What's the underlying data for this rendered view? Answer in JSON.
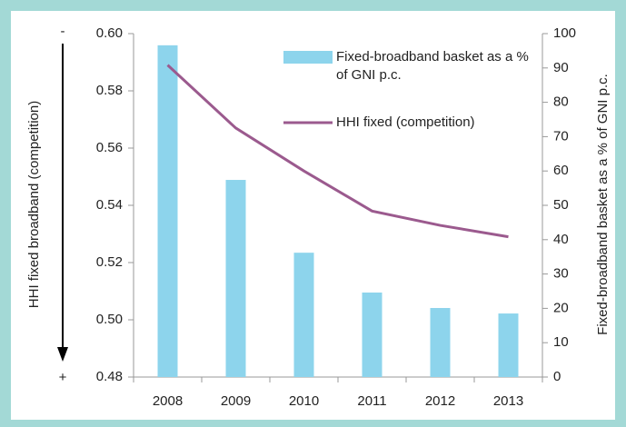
{
  "chart_data": {
    "type": "bar_line",
    "categories": [
      "2008",
      "2009",
      "2010",
      "2011",
      "2012",
      "2013"
    ],
    "series": [
      {
        "name": "Fixed-broadband basket as a % of GNI p.c.",
        "type": "bar",
        "axis": "y2",
        "color": "#8dd4ec",
        "values": [
          96.6,
          57.4,
          36.2,
          24.6,
          20.1,
          18.5
        ]
      },
      {
        "name": "HHI fixed (competition)",
        "type": "line",
        "axis": "y",
        "color": "#9b5a8e",
        "values": [
          0.589,
          0.567,
          0.552,
          0.538,
          0.533,
          0.529
        ]
      }
    ],
    "ylabel": "HHI fixed broadband (competition)",
    "y2label": "Fixed-broadband basket as a % of GNI p.c.",
    "ylim": [
      0.48,
      0.6
    ],
    "yticks": [
      {
        "value": 0.48,
        "label": "0.48"
      },
      {
        "value": 0.5,
        "label": "0.50"
      },
      {
        "value": 0.52,
        "label": "0.52"
      },
      {
        "value": 0.54,
        "label": "0.54"
      },
      {
        "value": 0.56,
        "label": "0.56"
      },
      {
        "value": 0.58,
        "label": "0.58"
      },
      {
        "value": 0.6,
        "label": "0.60"
      }
    ],
    "y2lim": [
      0,
      100
    ],
    "y2ticks": [
      0,
      10,
      20,
      30,
      40,
      50,
      60,
      70,
      80,
      90,
      100
    ],
    "ytop_marker": "-",
    "ybottom_marker": "+"
  }
}
